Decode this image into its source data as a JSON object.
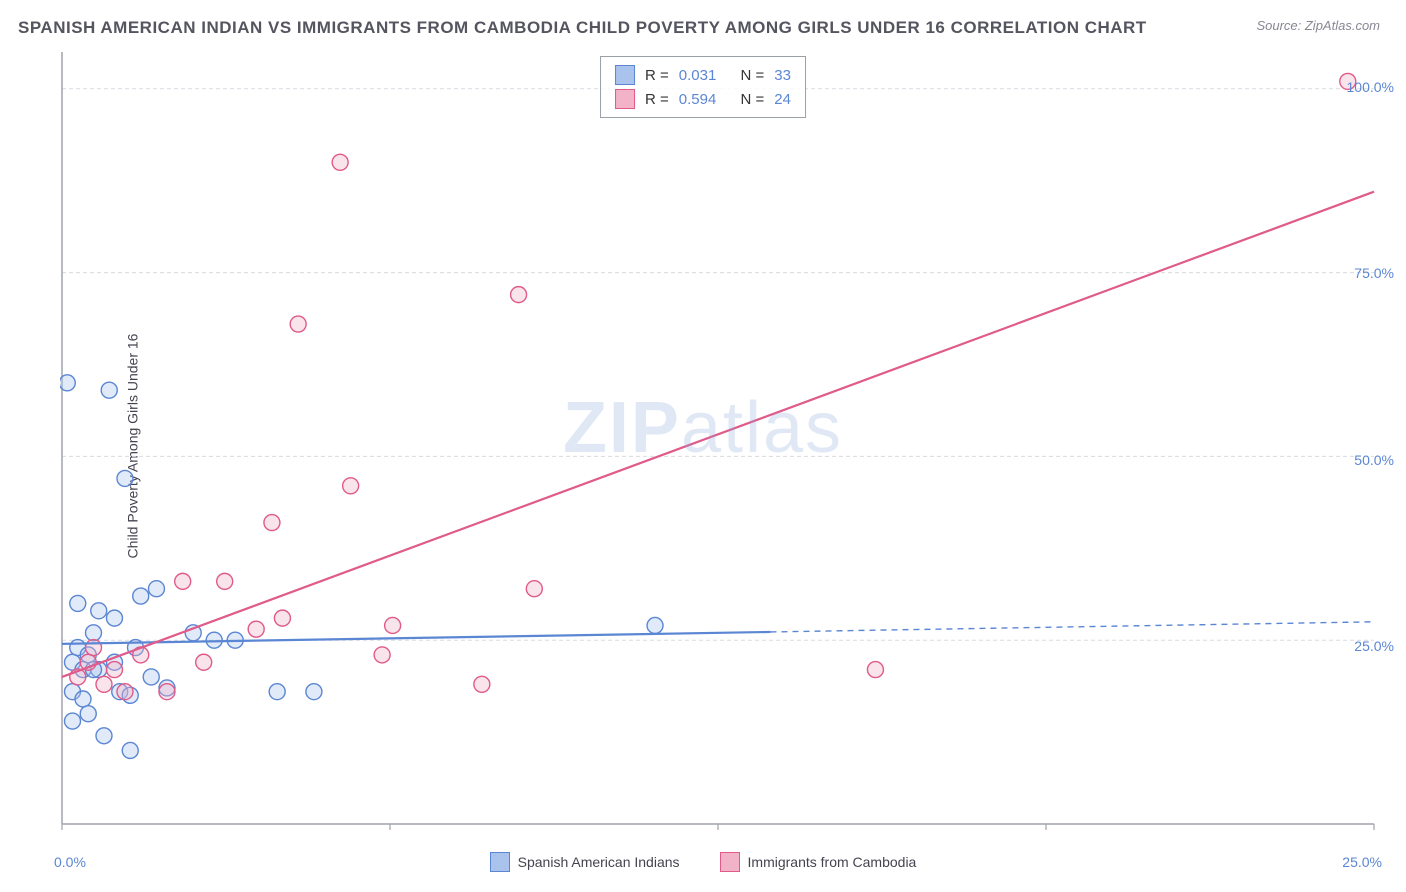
{
  "header": {
    "title": "SPANISH AMERICAN INDIAN VS IMMIGRANTS FROM CAMBODIA CHILD POVERTY AMONG GIRLS UNDER 16 CORRELATION CHART",
    "source": "Source: ZipAtlas.com"
  },
  "ylabel": "Child Poverty Among Girls Under 16",
  "watermark_prefix": "ZIP",
  "watermark_suffix": "atlas",
  "chart": {
    "type": "scatter",
    "xlim": [
      0,
      25
    ],
    "ylim": [
      0,
      105
    ],
    "xtick_labels": [
      "0.0%",
      "25.0%"
    ],
    "ytick_positions": [
      25,
      50,
      75,
      100
    ],
    "ytick_labels": [
      "25.0%",
      "50.0%",
      "75.0%",
      "100.0%"
    ],
    "grid_color": "#d7dbe0",
    "axis_color": "#9fa4ab",
    "background_color": "#ffffff",
    "marker_radius": 8,
    "marker_stroke_width": 1.4,
    "marker_fill_opacity": 0.35,
    "line_width": 2.2,
    "series": [
      {
        "name": "Spanish American Indians",
        "key": "series1",
        "label": "Spanish American Indians",
        "stroke": "#5b86d4",
        "fill": "#a9c3ec",
        "R": "0.031",
        "N": "33",
        "regression": {
          "x1": 0,
          "y1": 24.5,
          "x2": 25,
          "y2": 27.5,
          "solid_until": 13.5
        },
        "points": [
          [
            0.1,
            60
          ],
          [
            0.2,
            22
          ],
          [
            0.2,
            18
          ],
          [
            0.3,
            24
          ],
          [
            0.3,
            30
          ],
          [
            0.4,
            21
          ],
          [
            0.4,
            17
          ],
          [
            0.5,
            15
          ],
          [
            0.5,
            23
          ],
          [
            0.6,
            26
          ],
          [
            0.7,
            29
          ],
          [
            0.7,
            21
          ],
          [
            0.8,
            12
          ],
          [
            0.9,
            59
          ],
          [
            1.0,
            28
          ],
          [
            1.0,
            22
          ],
          [
            1.1,
            18
          ],
          [
            1.2,
            47
          ],
          [
            1.3,
            17.5
          ],
          [
            1.3,
            10
          ],
          [
            1.4,
            24
          ],
          [
            1.5,
            31
          ],
          [
            1.7,
            20
          ],
          [
            1.8,
            32
          ],
          [
            2.0,
            18.5
          ],
          [
            2.5,
            26
          ],
          [
            2.9,
            25
          ],
          [
            3.3,
            25
          ],
          [
            4.1,
            18
          ],
          [
            4.8,
            18
          ],
          [
            11.3,
            27
          ],
          [
            0.2,
            14
          ],
          [
            0.6,
            21
          ]
        ]
      },
      {
        "name": "Immigrants from Cambodia",
        "key": "series2",
        "label": "Immigrants from Cambodia",
        "stroke": "#e05a8a",
        "fill": "#f2b2c8",
        "R": "0.594",
        "N": "24",
        "regression": {
          "x1": 0,
          "y1": 20,
          "x2": 25,
          "y2": 86,
          "solid_until": 25
        },
        "points": [
          [
            0.3,
            20
          ],
          [
            0.5,
            22
          ],
          [
            0.6,
            24
          ],
          [
            0.8,
            19
          ],
          [
            1.0,
            21
          ],
          [
            1.2,
            18
          ],
          [
            1.5,
            23
          ],
          [
            2.0,
            18
          ],
          [
            2.3,
            33
          ],
          [
            2.7,
            22
          ],
          [
            3.1,
            33
          ],
          [
            3.7,
            26.5
          ],
          [
            4.0,
            41
          ],
          [
            4.2,
            28
          ],
          [
            4.5,
            68
          ],
          [
            5.5,
            46
          ],
          [
            5.3,
            90
          ],
          [
            6.1,
            23
          ],
          [
            6.3,
            27
          ],
          [
            8.0,
            19
          ],
          [
            8.7,
            72
          ],
          [
            9.0,
            32
          ],
          [
            15.5,
            21
          ],
          [
            24.5,
            101
          ]
        ]
      }
    ]
  },
  "stat_box": {
    "r_label": "R =",
    "n_label": "N ="
  },
  "legend": {
    "series1_label": "Spanish American Indians",
    "series2_label": "Immigrants from Cambodia"
  }
}
